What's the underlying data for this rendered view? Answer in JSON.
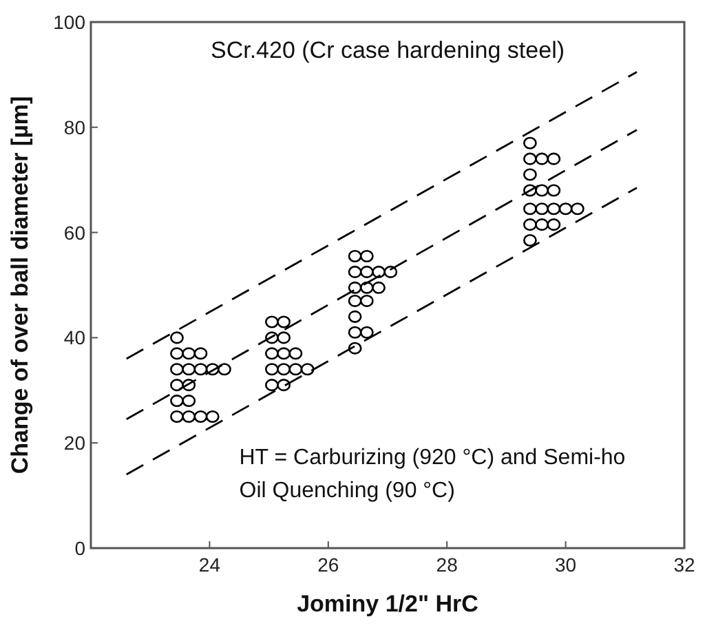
{
  "chart_data": {
    "type": "scatter",
    "title": "SCr.420 (Cr case hardening steel)",
    "xlabel": "Jominy 1/2\" HrC",
    "ylabel": "Change of over ball diameter [µm]",
    "xlim": [
      22,
      32
    ],
    "xticks": [
      24,
      26,
      28,
      30,
      32
    ],
    "ylim": [
      0,
      100
    ],
    "yticks": [
      0,
      20,
      40,
      60,
      80,
      100
    ],
    "grid": false,
    "annotations": [
      "HT = Carburizing (920 °C) and Semi-ho",
      "Oil Quenching (90 °C)"
    ],
    "series": [
      {
        "color": "#000000",
        "marker": "circle",
        "x": [
          23.45,
          23.45,
          23.65,
          23.85,
          23.45,
          23.65,
          23.85,
          24.05,
          24.25,
          23.45,
          23.65,
          23.45,
          23.65,
          23.45,
          23.65,
          23.85,
          24.05,
          25.05,
          25.25,
          25.05,
          25.25,
          25.05,
          25.25,
          25.45,
          25.05,
          25.25,
          25.45,
          25.65,
          25.05,
          25.25,
          26.45,
          26.65,
          26.45,
          26.65,
          26.85,
          27.05,
          26.45,
          26.65,
          26.85,
          26.45,
          26.65,
          26.45,
          26.45,
          26.65,
          26.45,
          29.4,
          29.4,
          29.6,
          29.8,
          29.4,
          29.4,
          29.6,
          29.8,
          29.4,
          29.6,
          29.8,
          30.0,
          30.2,
          29.4,
          29.6,
          29.8,
          29.4
        ],
        "values": [
          40,
          37,
          37,
          37,
          34,
          34,
          34,
          34,
          34,
          31,
          31,
          28,
          28,
          25,
          25,
          25,
          25,
          43,
          43,
          40,
          40,
          37,
          37,
          37,
          34,
          34,
          34,
          34,
          31,
          31,
          55.5,
          55.5,
          52.5,
          52.5,
          52.5,
          52.5,
          49.5,
          49.5,
          49.5,
          47,
          47,
          44,
          41,
          41,
          38,
          77,
          74,
          74,
          74,
          71,
          68,
          68,
          68,
          64.5,
          64.5,
          64.5,
          64.5,
          64.5,
          61.5,
          61.5,
          61.5,
          58.5
        ]
      },
      {
        "type": "line",
        "color": "#000000",
        "line_style": "dashed",
        "marker": "none",
        "x": [
          22.6,
          31.2
        ],
        "values": [
          36,
          90.5
        ]
      },
      {
        "type": "line",
        "color": "#000000",
        "line_style": "dashed",
        "marker": "none",
        "x": [
          22.6,
          31.2
        ],
        "values": [
          24.5,
          79.5
        ]
      },
      {
        "type": "line",
        "color": "#000000",
        "line_style": "dashed",
        "marker": "none",
        "x": [
          22.6,
          31.2
        ],
        "values": [
          14,
          68.5
        ]
      }
    ]
  }
}
